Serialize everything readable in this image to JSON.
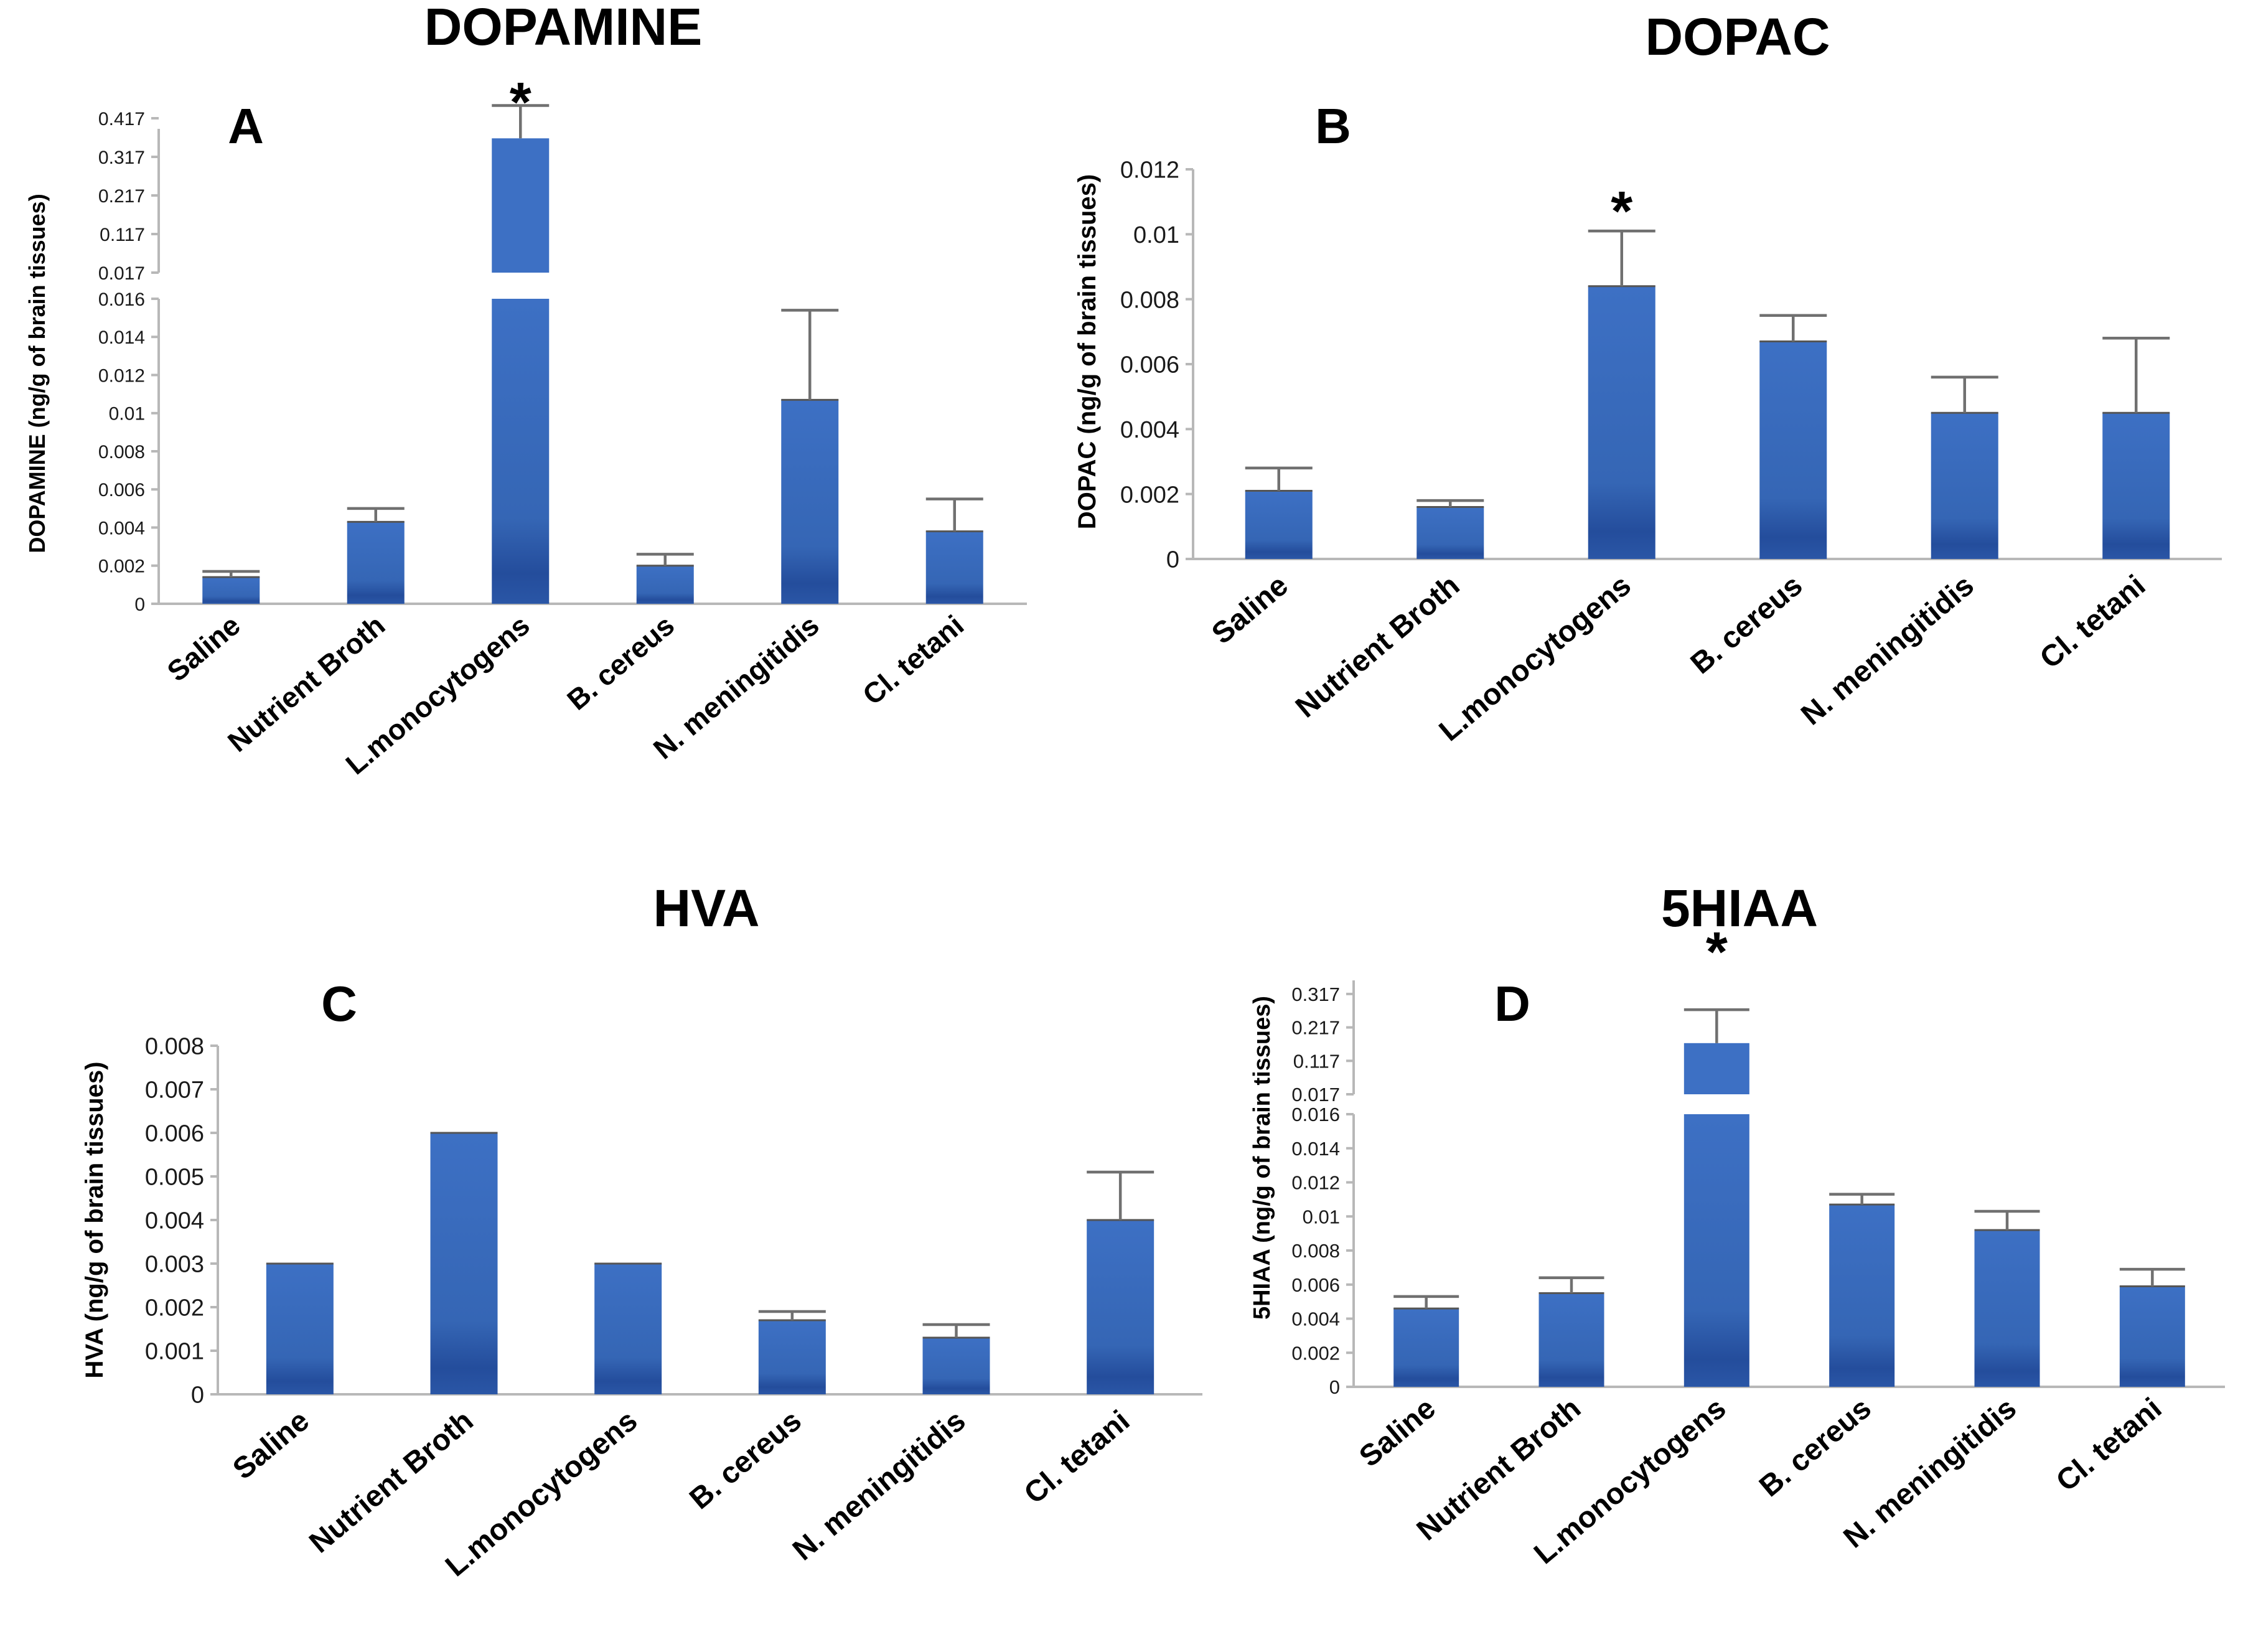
{
  "colors": {
    "bar": "#3b6ec0",
    "bar_dark": "#1f4591",
    "axis": "#b8b8b8",
    "error": "#707070"
  },
  "chart_data": [
    {
      "id": "A",
      "type": "bar",
      "title": "DOPAMINE",
      "panel_letter": "A",
      "ylabel": "DOPAMINE (ng/g of brain tissues)",
      "categories": [
        "Saline",
        "Nutrient Broth",
        "L.monocytogens",
        "B. cereus",
        "N. meningitidis",
        "Cl. tetani"
      ],
      "values": [
        0.0014,
        0.0043,
        0.365,
        0.002,
        0.0107,
        0.0038
      ],
      "errors": [
        0.0003,
        0.0007,
        0.085,
        0.0006,
        0.0047,
        0.0017
      ],
      "significance": [
        "",
        "",
        "*",
        "",
        "",
        ""
      ],
      "broken_axis": true,
      "lower_ylim": [
        0,
        0.016
      ],
      "lower_ticks": [
        "0",
        "0.002",
        "0.004",
        "0.006",
        "0.008",
        "0.01",
        "0.012",
        "0.014",
        "0.016"
      ],
      "upper_ylim": [
        0.017,
        0.417
      ],
      "upper_ticks": [
        "0.017",
        "0.117",
        "0.217",
        "0.317",
        "0.417"
      ]
    },
    {
      "id": "B",
      "type": "bar",
      "title": "DOPAC",
      "panel_letter": "B",
      "ylabel": "DOPAC (ng/g of brain tissues)",
      "categories": [
        "Saline",
        "Nutrient Broth",
        "L.monocytogens",
        "B. cereus",
        "N. meningitidis",
        "Cl. tetani"
      ],
      "values": [
        0.0021,
        0.0016,
        0.0084,
        0.0067,
        0.0045,
        0.0045
      ],
      "errors": [
        0.0007,
        0.0002,
        0.0017,
        0.0008,
        0.0011,
        0.0023
      ],
      "significance": [
        "",
        "",
        "*",
        "",
        "",
        ""
      ],
      "broken_axis": false,
      "ylim": [
        0,
        0.012
      ],
      "ticks": [
        "0",
        "0.002",
        "0.004",
        "0.006",
        "0.008",
        "0.01",
        "0.012"
      ]
    },
    {
      "id": "C",
      "type": "bar",
      "title": "HVA",
      "panel_letter": "C",
      "ylabel": "HVA (ng/g of brain tissues)",
      "categories": [
        "Saline",
        "Nutrient Broth",
        "L.monocytogens",
        "B. cereus",
        "N. meningitidis",
        "Cl. tetani"
      ],
      "values": [
        0.003,
        0.006,
        0.003,
        0.0017,
        0.0013,
        0.004
      ],
      "errors": [
        0,
        0,
        0,
        0.0002,
        0.0003,
        0.0011
      ],
      "significance": [
        "",
        "",
        "",
        "",
        "",
        ""
      ],
      "broken_axis": false,
      "ylim": [
        0,
        0.008
      ],
      "ticks": [
        "0",
        "0.001",
        "0.002",
        "0.003",
        "0.004",
        "0.005",
        "0.006",
        "0.007",
        "0.008"
      ]
    },
    {
      "id": "D",
      "type": "bar",
      "title": "5HIAA",
      "panel_letter": "D",
      "ylabel": "5HIAA (ng/g of brain tissues)",
      "categories": [
        "Saline",
        "Nutrient Broth",
        "L.monocytogens",
        "B. cereus",
        "N. meningitidis",
        "Cl. tetani"
      ],
      "values": [
        0.0046,
        0.0055,
        0.17,
        0.0107,
        0.0092,
        0.0059
      ],
      "errors": [
        0.0007,
        0.0009,
        0.1,
        0.0006,
        0.0011,
        0.001
      ],
      "significance": [
        "",
        "",
        "*",
        "",
        "",
        ""
      ],
      "broken_axis": true,
      "lower_ylim": [
        0,
        0.016
      ],
      "lower_ticks": [
        "0",
        "0.002",
        "0.004",
        "0.006",
        "0.008",
        "0.01",
        "0.012",
        "0.014",
        "0.016"
      ],
      "upper_ylim": [
        0.017,
        0.367
      ],
      "upper_ticks": [
        "0.017",
        "0.117",
        "0.217",
        "0.317"
      ]
    }
  ]
}
